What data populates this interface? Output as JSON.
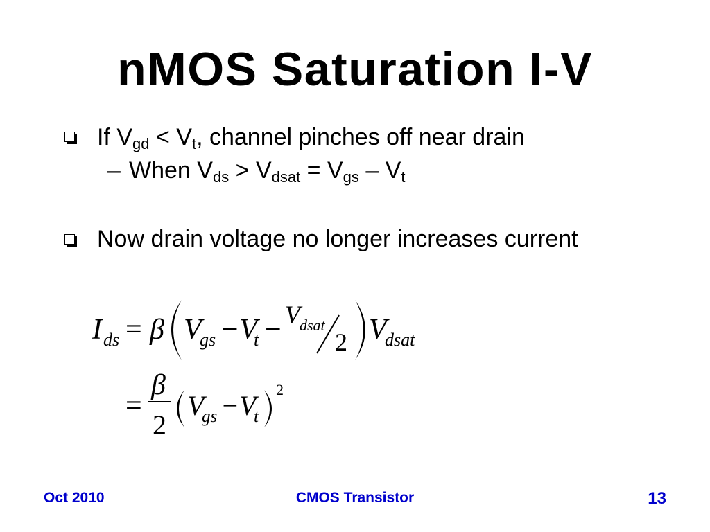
{
  "slide": {
    "title": "nMOS Saturation I-V",
    "bullet_icon": "hollow-shadowed-square-icon",
    "bullets": [
      {
        "parts": [
          "If V",
          "gd",
          " < V",
          "t",
          ", channel pinches off near drain"
        ],
        "sub_bullets": [
          {
            "marker": "–",
            "parts": [
              "When V",
              "ds",
              " > V",
              "dsat",
              " = V",
              "gs",
              " – V",
              "t"
            ]
          }
        ]
      },
      {
        "parts": [
          "Now drain voltage no longer increases current"
        ]
      }
    ]
  },
  "equations": [
    {
      "lhs": "I",
      "lhs_sub": "ds",
      "equals": "=",
      "beta": "β",
      "v_gs": "V",
      "v_gs_sub": "gs",
      "minus_v_t": "−V",
      "v_t_sub": "t",
      "minus": "−",
      "v_dsat_num": "V",
      "v_dsat_num_sub": "dsat",
      "half_den": "2",
      "v_dsat": "V",
      "v_dsat_sub": "dsat"
    },
    {
      "equals": "=",
      "beta_num": "β",
      "beta_den": "2",
      "v_gs": "V",
      "v_gs_sub": "gs",
      "minus_v_t": "−V",
      "v_t_sub": "t",
      "exponent": "2"
    }
  ],
  "footer": {
    "date": "Oct 2010",
    "center": "CMOS Transistor",
    "page_number": "13"
  },
  "colors": {
    "footer_text": "#0000cc",
    "text": "#000000",
    "background": "#ffffff"
  }
}
